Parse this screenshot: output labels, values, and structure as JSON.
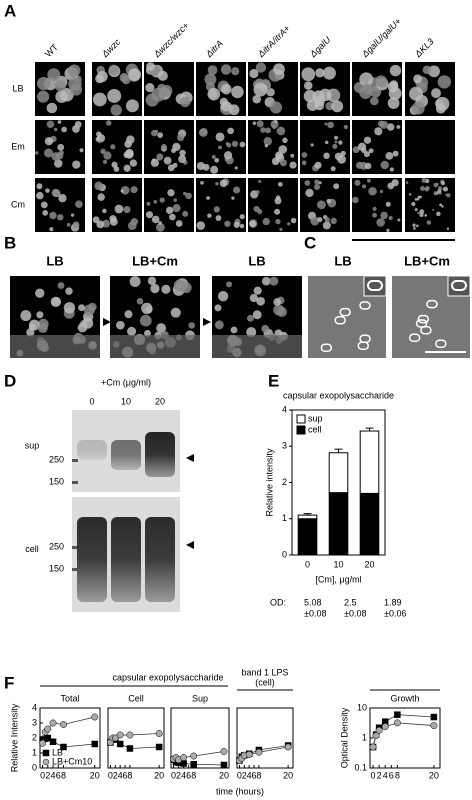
{
  "panels": {
    "A": {
      "label": "A",
      "columns": [
        "WT",
        "Δwzc",
        "Δwzc/wzc+",
        "ΔitrA",
        "ΔitrA/itrA+",
        "ΔgalU",
        "ΔgalU/galU+",
        "ΔKL3"
      ],
      "rows": [
        "LB",
        "Em",
        "Cm"
      ]
    },
    "B": {
      "label": "B",
      "images": [
        "LB",
        "LB+Cm",
        "LB"
      ]
    },
    "C": {
      "label": "C",
      "images": [
        "LB",
        "LB+Cm"
      ]
    },
    "D": {
      "label": "D",
      "treatment": "+Cm (μg/ml)",
      "lanes": [
        "0",
        "10",
        "20"
      ],
      "gels": [
        {
          "name": "sup",
          "markers": [
            "250",
            "150"
          ]
        },
        {
          "name": "cell",
          "markers": [
            "250",
            "150"
          ]
        }
      ]
    },
    "E": {
      "label": "E",
      "od_label": "OD:",
      "od_values": [
        {
          "value": "5.08",
          "error": "±0.08"
        },
        {
          "value": "2.5",
          "error": "±0.08"
        },
        {
          "value": "1.89",
          "error": "±0.06"
        }
      ]
    },
    "F": {
      "label": "F",
      "group_label": "capsular exopolysaccharide",
      "lps_label": "band 1 LPS",
      "lps_sublabel": "(cell)",
      "xlabel": "time (hours)"
    }
  },
  "chart_data": [
    {
      "type": "bar",
      "title": "capsular exopolysaccharide",
      "ylabel": "Relative intensity",
      "xlabel": "[Cm], μg/ml",
      "categories": [
        "0",
        "10",
        "20"
      ],
      "ylim": [
        0,
        4
      ],
      "yticks": [
        0,
        1,
        2,
        3,
        4
      ],
      "stacked": true,
      "legend": "upper left",
      "series": [
        {
          "name": "cell",
          "color": "#000000",
          "values": [
            1.0,
            1.72,
            1.7
          ],
          "errors": [
            0.04,
            0.06,
            0.05
          ]
        },
        {
          "name": "sup",
          "color": "#ffffff",
          "values": [
            0.1,
            1.1,
            1.72
          ],
          "errors": [
            0.04,
            0.1,
            0.08
          ]
        }
      ]
    },
    {
      "type": "line",
      "title": "Total",
      "ylabel": "Relative Intensity",
      "legend": "lower left",
      "x": [
        0,
        1,
        2,
        4,
        8,
        20
      ],
      "xlim": [
        -1,
        22
      ],
      "xticks": [
        0,
        2,
        4,
        6,
        8,
        20
      ],
      "ylim": [
        0,
        4
      ],
      "yticks": [
        0,
        1,
        2,
        3,
        4
      ],
      "series": [
        {
          "name": "LB",
          "color": "#000000",
          "marker": "square",
          "values": [
            1.9,
            1.95,
            2.0,
            1.75,
            1.4,
            1.6
          ]
        },
        {
          "name": "LB+Cm10",
          "color": "#aaaaaa",
          "marker": "circle",
          "values": [
            1.65,
            2.4,
            2.6,
            3.0,
            2.9,
            3.4
          ]
        }
      ]
    },
    {
      "type": "line",
      "title": "Cell",
      "x": [
        0,
        1,
        2,
        4,
        8,
        20
      ],
      "xlim": [
        -1,
        22
      ],
      "xticks": [
        0,
        2,
        4,
        6,
        8,
        20
      ],
      "ylim": [
        0,
        4
      ],
      "series": [
        {
          "color": "#000000",
          "marker": "square",
          "values": [
            1.7,
            1.9,
            1.9,
            1.6,
            1.3,
            1.4
          ]
        },
        {
          "color": "#aaaaaa",
          "marker": "circle",
          "values": [
            1.7,
            2.0,
            2.0,
            2.2,
            2.2,
            2.3
          ]
        }
      ]
    },
    {
      "type": "line",
      "title": "Sup",
      "x": [
        0,
        1,
        2,
        4,
        8,
        20
      ],
      "xlim": [
        -1,
        22
      ],
      "xticks": [
        0,
        2,
        4,
        6,
        8,
        20
      ],
      "ylim": [
        0,
        4
      ],
      "series": [
        {
          "color": "#000000",
          "marker": "square",
          "values": [
            0.55,
            0.4,
            0.35,
            0.3,
            0.25,
            0.2
          ]
        },
        {
          "color": "#aaaaaa",
          "marker": "circle",
          "values": [
            0.6,
            0.7,
            0.55,
            0.7,
            0.8,
            1.1
          ]
        }
      ]
    },
    {
      "type": "line",
      "x": [
        0,
        1,
        2,
        4,
        8,
        20
      ],
      "xlim": [
        -1,
        22
      ],
      "xticks": [
        0,
        2,
        4,
        6,
        8,
        20
      ],
      "ylim": [
        0,
        4
      ],
      "series": [
        {
          "color": "#000000",
          "marker": "square",
          "values": [
            0.5,
            0.75,
            0.85,
            0.95,
            1.2,
            1.5
          ]
        },
        {
          "color": "#aaaaaa",
          "marker": "circle",
          "values": [
            0.5,
            0.65,
            0.85,
            0.9,
            1.05,
            1.4
          ]
        }
      ]
    },
    {
      "type": "line",
      "title": "Growth",
      "ylabel": "Optical Density",
      "log_y": true,
      "x": [
        0,
        1,
        2,
        4,
        8,
        20
      ],
      "xlim": [
        -1,
        22
      ],
      "xticks": [
        0,
        2,
        4,
        6,
        8,
        20
      ],
      "ylim": [
        0.1,
        10
      ],
      "yticks": [
        0.1,
        1,
        10
      ],
      "series": [
        {
          "color": "#000000",
          "marker": "square",
          "values": [
            0.5,
            1.3,
            2.2,
            3.5,
            6,
            5
          ]
        },
        {
          "color": "#aaaaaa",
          "marker": "circle",
          "values": [
            0.5,
            1.2,
            1.8,
            2.4,
            3.2,
            2.6
          ]
        }
      ]
    }
  ]
}
